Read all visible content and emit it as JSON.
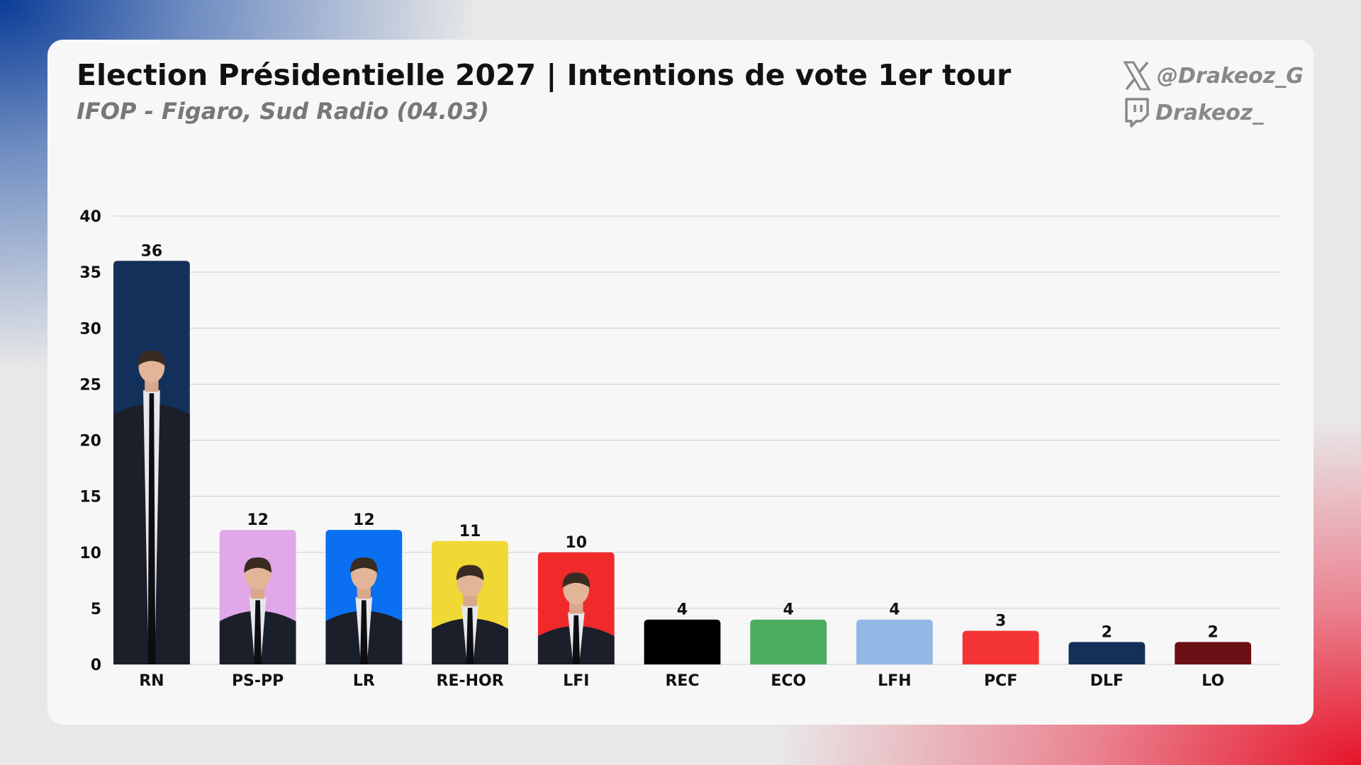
{
  "header": {
    "title": "Election Présidentielle 2027 | Intentions de vote 1er tour",
    "subtitle": "IFOP - Figaro, Sud Radio (04.03)"
  },
  "social": {
    "x_handle": "@Drakeoz_G",
    "twitch_handle": "Drakeoz_"
  },
  "chart_data": {
    "type": "bar",
    "title": "Election Présidentielle 2027 | Intentions de vote 1er tour",
    "subtitle": "IFOP - Figaro, Sud Radio (04.03)",
    "xlabel": "",
    "ylabel": "",
    "ylim": [
      0,
      40
    ],
    "yticks": [
      0,
      5,
      10,
      15,
      20,
      25,
      30,
      35,
      40
    ],
    "grid": true,
    "legend": "none",
    "categories": [
      "RN",
      "PS-PP",
      "LR",
      "RE-HOR",
      "LFI",
      "REC",
      "ECO",
      "LFH",
      "PCF",
      "DLF",
      "LO"
    ],
    "values": [
      36,
      12,
      12,
      11,
      10,
      4,
      4,
      4,
      3,
      2,
      2
    ],
    "colors": [
      "#13305a",
      "#e0a8e8",
      "#0a6ff0",
      "#f0d835",
      "#f02a2a",
      "#000000",
      "#4aad60",
      "#93b8e6",
      "#f53535",
      "#13305a",
      "#6a0f14"
    ],
    "has_portrait": [
      true,
      true,
      true,
      true,
      true,
      false,
      false,
      false,
      false,
      false,
      false
    ]
  }
}
